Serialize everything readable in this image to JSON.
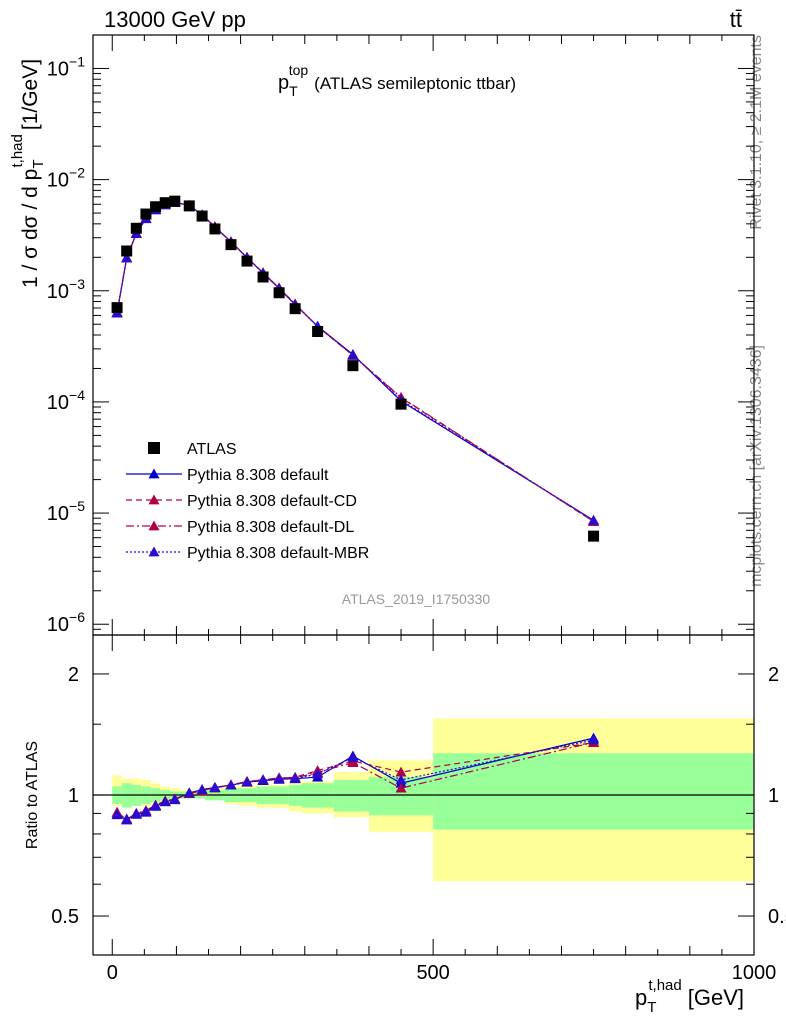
{
  "header": {
    "energy_label": "13000 GeV pp",
    "process_label": "tt̄"
  },
  "side_labels": {
    "rivet": "Rivet 3.1.10, ≥ 2.1M events",
    "mcplots": "mcplots.cern.ch [arXiv:1306.3436]"
  },
  "watermark": "ATLAS_2019_I1750330",
  "colors": {
    "data": "#000000",
    "default": "#0000cc",
    "cd": "#b0004a",
    "dl": "#b0004a",
    "mbr": "#2a0cd0",
    "band_inner": "#99ff99",
    "band_outer": "#ffff99"
  },
  "chart_data": [
    {
      "type": "scatter",
      "panel": "main",
      "title": "p_T^top (ATLAS semileptonic ttbar)",
      "title_parts": {
        "main": "p",
        "sup": "top",
        "sub": "T",
        "rest": "(ATLAS semileptonic ttbar)"
      },
      "xlabel": "p_T^{t,had} [GeV]",
      "ylabel": "1 / σ dσ / d p_T^{t,had} [1/GeV]",
      "x_scale": "linear",
      "y_scale": "log",
      "xlim": [
        -30,
        1000
      ],
      "ylim": [
        8e-07,
        0.2
      ],
      "y_ticks": [
        {
          "value": 1e-06,
          "exp": "−6"
        },
        {
          "value": 1e-05,
          "exp": "−5"
        },
        {
          "value": 0.0001,
          "exp": "−4"
        },
        {
          "value": 0.001,
          "exp": "−3"
        },
        {
          "value": 0.01,
          "exp": "−2"
        },
        {
          "value": 0.1,
          "exp": "−1"
        }
      ],
      "legend_position": "center-left",
      "x": [
        7.5,
        22.5,
        37.5,
        52.5,
        67.5,
        82.5,
        97.5,
        120,
        140,
        160,
        185,
        210,
        235,
        260,
        285,
        320,
        375,
        450,
        750
      ],
      "series": [
        {
          "name": "ATLAS",
          "style": "data",
          "values": [
            0.000705,
            0.00228,
            0.00365,
            0.0049,
            0.0057,
            0.0062,
            0.0064,
            0.0058,
            0.0047,
            0.0036,
            0.0026,
            0.00185,
            0.00133,
            0.00096,
            0.00069,
            0.00043,
            0.000212,
            9.55e-05,
            6.2e-06
          ]
        },
        {
          "name": "Pythia 8.308 default",
          "style": "solid",
          "values": [
            0.00063,
            0.00197,
            0.00327,
            0.00445,
            0.00535,
            0.00593,
            0.00622,
            0.00587,
            0.00483,
            0.00376,
            0.00275,
            0.00199,
            0.00144,
            0.00105,
            0.00075,
            0.00048,
            0.000267,
            0.000102,
            8.6e-06
          ]
        },
        {
          "name": "Pythia 8.308 default-CD",
          "style": "dashed",
          "values": [
            0.00064,
            0.00197,
            0.00328,
            0.00448,
            0.00538,
            0.00595,
            0.00624,
            0.00585,
            0.00481,
            0.00375,
            0.00275,
            0.00199,
            0.00145,
            0.00106,
            0.00076,
            0.000475,
            0.000262,
            0.000109,
            8.4e-06
          ]
        },
        {
          "name": "Pythia 8.308 default-DL",
          "style": "dashdot",
          "values": [
            0.00064,
            0.00198,
            0.0033,
            0.00449,
            0.0054,
            0.00597,
            0.00626,
            0.00586,
            0.00482,
            0.00376,
            0.00276,
            0.002,
            0.00145,
            0.00106,
            0.00076,
            0.000477,
            0.000263,
            0.00011,
            8.4e-06
          ]
        },
        {
          "name": "Pythia 8.308 default-MBR",
          "style": "dotted",
          "values": [
            0.00063,
            0.00198,
            0.00328,
            0.00446,
            0.00536,
            0.00594,
            0.00623,
            0.00586,
            0.00482,
            0.00376,
            0.00275,
            0.00199,
            0.00145,
            0.00105,
            0.00075,
            0.000478,
            0.000265,
            0.000104,
            8.6e-06
          ]
        }
      ]
    },
    {
      "type": "line",
      "panel": "ratio",
      "ylabel": "Ratio to ATLAS",
      "xlabel": "p_T^{t,had} [GeV]",
      "x_scale": "linear",
      "y_scale": "log",
      "xlim": [
        -30,
        1000
      ],
      "ylim": [
        0.4,
        2.5
      ],
      "y_ticks": [
        {
          "value": 0.5,
          "label": "0.5"
        },
        {
          "value": 1,
          "label": "1"
        },
        {
          "value": 2,
          "label": "2"
        }
      ],
      "x_ticks": [
        {
          "value": 0,
          "label": "0"
        },
        {
          "value": 500,
          "label": "500"
        },
        {
          "value": 1000,
          "label": "1000"
        }
      ],
      "bins": [
        0,
        15,
        30,
        45,
        60,
        75,
        90,
        105,
        135,
        145,
        175,
        195,
        225,
        245,
        275,
        295,
        345,
        400,
        500,
        1000
      ],
      "band_inner": [
        [
          0.95,
          1.05
        ],
        [
          0.93,
          1.07
        ],
        [
          0.94,
          1.06
        ],
        [
          0.95,
          1.05
        ],
        [
          0.96,
          1.04
        ],
        [
          0.97,
          1.03
        ],
        [
          0.98,
          1.02
        ],
        [
          0.98,
          1.02
        ],
        [
          0.98,
          1.02
        ],
        [
          0.97,
          1.03
        ],
        [
          0.96,
          1.04
        ],
        [
          0.96,
          1.04
        ],
        [
          0.95,
          1.05
        ],
        [
          0.95,
          1.05
        ],
        [
          0.94,
          1.06
        ],
        [
          0.93,
          1.07
        ],
        [
          0.91,
          1.09
        ],
        [
          0.89,
          1.11
        ],
        [
          0.82,
          1.27
        ]
      ],
      "band_outer": [
        [
          0.94,
          1.12
        ],
        [
          0.93,
          1.1
        ],
        [
          0.94,
          1.1
        ],
        [
          0.94,
          1.09
        ],
        [
          0.95,
          1.07
        ],
        [
          0.96,
          1.05
        ],
        [
          0.97,
          1.04
        ],
        [
          0.98,
          1.03
        ],
        [
          0.98,
          1.03
        ],
        [
          0.97,
          1.04
        ],
        [
          0.95,
          1.05
        ],
        [
          0.94,
          1.05
        ],
        [
          0.93,
          1.06
        ],
        [
          0.93,
          1.06
        ],
        [
          0.91,
          1.07
        ],
        [
          0.9,
          1.08
        ],
        [
          0.88,
          1.14
        ],
        [
          0.81,
          1.22
        ],
        [
          0.61,
          1.55
        ]
      ],
      "x": [
        7.5,
        22.5,
        37.5,
        52.5,
        67.5,
        82.5,
        97.5,
        120,
        140,
        160,
        185,
        210,
        235,
        260,
        285,
        320,
        375,
        450,
        750
      ],
      "series": [
        {
          "name": "Pythia 8.308 default",
          "style": "solid",
          "values": [
            0.893,
            0.867,
            0.895,
            0.906,
            0.937,
            0.962,
            0.973,
            1.012,
            1.031,
            1.045,
            1.058,
            1.076,
            1.086,
            1.094,
            1.098,
            1.108,
            1.25,
            1.07,
            1.385
          ]
        },
        {
          "name": "Pythia 8.308 default-CD",
          "style": "dashed",
          "values": [
            0.905,
            0.872,
            0.898,
            0.913,
            0.942,
            0.965,
            0.976,
            1.008,
            1.024,
            1.041,
            1.058,
            1.078,
            1.092,
            1.1,
            1.107,
            1.15,
            1.215,
            1.14,
            1.35
          ]
        },
        {
          "name": "Pythia 8.308 default-DL",
          "style": "dashdot",
          "values": [
            0.905,
            0.87,
            0.901,
            0.915,
            0.944,
            0.967,
            0.978,
            1.01,
            1.026,
            1.043,
            1.06,
            1.081,
            1.09,
            1.104,
            1.103,
            1.138,
            1.204,
            1.04,
            1.352
          ]
        },
        {
          "name": "Pythia 8.308 default-MBR",
          "style": "dotted",
          "values": [
            0.895,
            0.87,
            0.898,
            0.91,
            0.94,
            0.962,
            0.975,
            1.012,
            1.032,
            1.043,
            1.058,
            1.077,
            1.09,
            1.096,
            1.1,
            1.128,
            1.24,
            1.09,
            1.37
          ]
        }
      ]
    }
  ]
}
